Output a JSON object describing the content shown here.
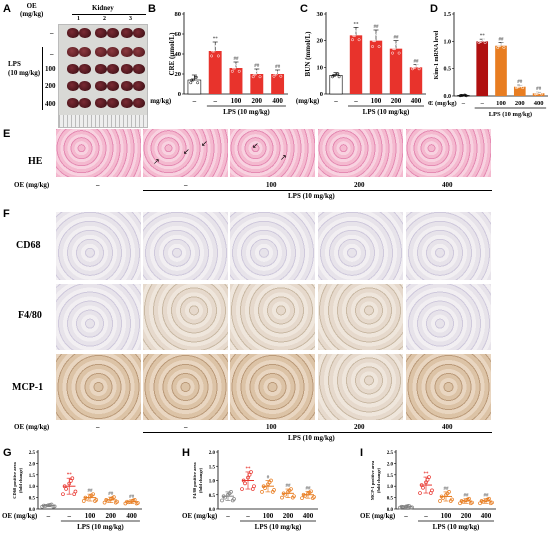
{
  "panels": {
    "A": "A",
    "B": "B",
    "C": "C",
    "D": "D",
    "E": "E",
    "F": "F",
    "G": "G",
    "H": "H",
    "I": "I"
  },
  "panel_a": {
    "oe_header": "OE\n(mg/kg)",
    "kidney_header": "Kidney",
    "cols": [
      "1",
      "2",
      "3"
    ],
    "rows": [
      "–",
      "–",
      "100",
      "200",
      "400"
    ],
    "lps_label": "LPS\n(10 mg/kg)"
  },
  "axis_rows": {
    "oe_label": "OE (mg/kg)",
    "doses": [
      "–",
      "–",
      "100",
      "200",
      "400"
    ],
    "lps_label": "LPS (10 mg/kg)"
  },
  "histology": {
    "he_label": "HE",
    "cd68_label": "CD68",
    "f480_label": "F4/80",
    "mcp1_label": "MCP-1",
    "doses": [
      "–",
      "–",
      "100",
      "200",
      "400"
    ],
    "oe_label": "OE (mg/kg)",
    "lps_label": "LPS (10 mg/kg)"
  },
  "colors": {
    "red": "#e8332c",
    "orange": "#e87d21",
    "darkred": "#b01010",
    "gray": "#808080"
  },
  "chart_data": [
    {
      "type": "bar",
      "panel": "B",
      "ylabel": "CRE (μmol/L)",
      "ylim": [
        0,
        80
      ],
      "yticks": [
        0,
        20,
        40,
        60,
        80
      ],
      "categories": [
        "–",
        "–",
        "100",
        "200",
        "400"
      ],
      "values": [
        14,
        43,
        26,
        20,
        20
      ],
      "errors": [
        5,
        9,
        6,
        5,
        4
      ],
      "annotations": [
        "",
        "**",
        "##",
        "##",
        "##"
      ],
      "colors": [
        "white",
        "red",
        "red",
        "red",
        "red"
      ]
    },
    {
      "type": "bar",
      "panel": "C",
      "ylabel": "BUN (mmol/L)",
      "ylim": [
        0,
        30
      ],
      "yticks": [
        0,
        10,
        20,
        30
      ],
      "categories": [
        "–",
        "–",
        "100",
        "200",
        "400"
      ],
      "values": [
        7,
        22,
        20,
        17,
        10
      ],
      "errors": [
        1,
        3,
        4,
        3,
        1
      ],
      "annotations": [
        "",
        "**",
        "##",
        "##",
        "##"
      ],
      "colors": [
        "white",
        "red",
        "red",
        "red",
        "red"
      ]
    },
    {
      "type": "bar",
      "panel": "D",
      "ylabel": "Kim-1 mRNA level",
      "ylim": [
        0,
        1.5
      ],
      "yticks": [
        0.0,
        0.5,
        1.0,
        1.5
      ],
      "categories": [
        "–",
        "–",
        "100",
        "200",
        "400"
      ],
      "values": [
        0.01,
        1.0,
        0.92,
        0.17,
        0.05
      ],
      "errors": [
        0.01,
        0.04,
        0.06,
        0.03,
        0.02
      ],
      "annotations": [
        "",
        "**",
        "##",
        "##",
        "##"
      ],
      "colors": [
        "white",
        "darkred",
        "orange",
        "orange",
        "orange"
      ]
    },
    {
      "type": "scatter",
      "panel": "G",
      "ylabel": "CD68 positive area\n(fold change)",
      "ylim": [
        0,
        2.5
      ],
      "yticks": [
        0.0,
        0.5,
        1.0,
        1.5,
        2.0,
        2.5
      ],
      "categories": [
        "–",
        "–",
        "100",
        "200",
        "400"
      ],
      "means": [
        0.15,
        1.0,
        0.5,
        0.4,
        0.32
      ],
      "sds": [
        0.05,
        0.35,
        0.15,
        0.12,
        0.08
      ],
      "annotations": [
        "",
        "**",
        "##",
        "##",
        "##"
      ],
      "colors": [
        "gray",
        "red",
        "orange",
        "orange",
        "orange"
      ]
    },
    {
      "type": "scatter",
      "panel": "H",
      "ylabel": "F4/80 positive area\n(fold change)",
      "ylim": [
        0,
        2.0
      ],
      "yticks": [
        0.0,
        0.5,
        1.0,
        1.5,
        2.0
      ],
      "categories": [
        "–",
        "–",
        "100",
        "200",
        "400"
      ],
      "means": [
        0.45,
        1.0,
        0.8,
        0.55,
        0.5
      ],
      "sds": [
        0.15,
        0.3,
        0.2,
        0.15,
        0.12
      ],
      "annotations": [
        "",
        "**",
        "#",
        "##",
        "##"
      ],
      "colors": [
        "gray",
        "red",
        "orange",
        "orange",
        "orange"
      ]
    },
    {
      "type": "scatter",
      "panel": "I",
      "ylabel": "MCP-1 positive area\n(fold change)",
      "ylim": [
        0,
        2.5
      ],
      "yticks": [
        0.0,
        0.5,
        1.0,
        1.5,
        2.0,
        2.5
      ],
      "categories": [
        "–",
        "–",
        "100",
        "200",
        "400"
      ],
      "means": [
        0.1,
        1.05,
        0.55,
        0.35,
        0.35
      ],
      "sds": [
        0.04,
        0.35,
        0.2,
        0.1,
        0.1
      ],
      "annotations": [
        "",
        "**",
        "##",
        "##",
        "##"
      ],
      "colors": [
        "gray",
        "red",
        "orange",
        "orange",
        "orange"
      ]
    }
  ]
}
